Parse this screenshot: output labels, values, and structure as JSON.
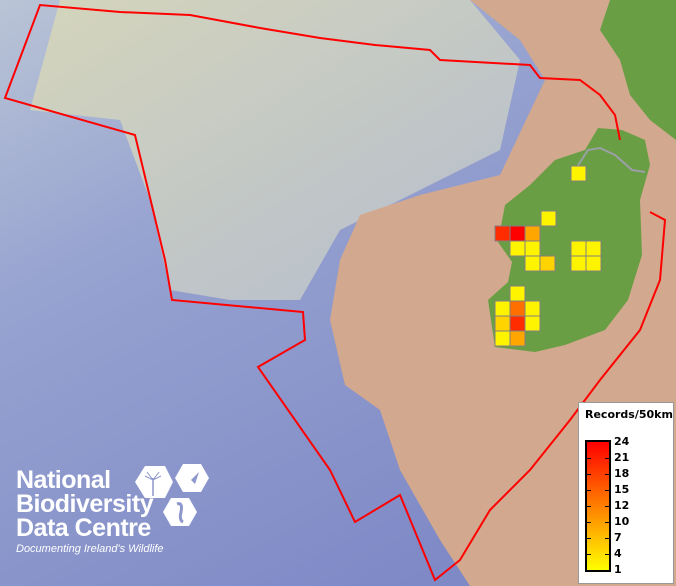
{
  "legend": {
    "title": "Records/50km",
    "labels": [
      "24",
      "21",
      "18",
      "15",
      "12",
      "10",
      "7",
      "4",
      "1"
    ],
    "min_color": "#ffff00",
    "max_color": "#ff0000",
    "min": 1,
    "max": 24
  },
  "logo": {
    "line1": "National",
    "line2": "Biodiversity",
    "line3": "Data Centre",
    "tagline": "Documenting Ireland's Wildlife"
  },
  "map": {
    "boundary_color": "#ff0000",
    "ocean_color": "#8d97cc",
    "shelf_color": "#d2a88e",
    "land_color": "#6a9e45",
    "cell_outline_color": "#808080",
    "cell_values": [
      2,
      2,
      20,
      24,
      9,
      2,
      2,
      2,
      2,
      2,
      5,
      2,
      2,
      2,
      2,
      14,
      2,
      5,
      20,
      2,
      2,
      9
    ]
  }
}
